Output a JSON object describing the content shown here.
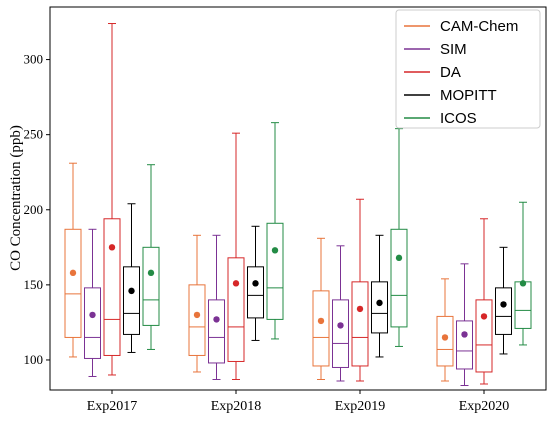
{
  "chart_data": {
    "type": "box",
    "ylabel": "CO Concentration (ppb)",
    "xlabel": "",
    "ylim": [
      80,
      335
    ],
    "yticks": [
      100,
      150,
      200,
      250,
      300
    ],
    "grid": false,
    "legend_placement": "top-right",
    "categories": [
      "Exp2017",
      "Exp2018",
      "Exp2019",
      "Exp2020"
    ],
    "series": [
      {
        "name": "CAM-Chem",
        "color": "#e8743b",
        "boxes": [
          {
            "min": 102,
            "q1": 115,
            "median": 144,
            "q3": 187,
            "max": 231,
            "mean": 158
          },
          {
            "min": 92,
            "q1": 103,
            "median": 122,
            "q3": 150,
            "max": 183,
            "mean": 130
          },
          {
            "min": 87,
            "q1": 96,
            "median": 115,
            "q3": 146,
            "max": 181,
            "mean": 126
          },
          {
            "min": 86,
            "q1": 96,
            "median": 107,
            "q3": 129,
            "max": 154,
            "mean": 115
          }
        ]
      },
      {
        "name": "SIM",
        "color": "#7b3294",
        "boxes": [
          {
            "min": 89,
            "q1": 101,
            "median": 115,
            "q3": 148,
            "max": 187,
            "mean": 130
          },
          {
            "min": 87,
            "q1": 98,
            "median": 115,
            "q3": 140,
            "max": 183,
            "mean": 127
          },
          {
            "min": 86,
            "q1": 95,
            "median": 111,
            "q3": 140,
            "max": 176,
            "mean": 123
          },
          {
            "min": 83,
            "q1": 94,
            "median": 106,
            "q3": 126,
            "max": 164,
            "mean": 117
          }
        ]
      },
      {
        "name": "DA",
        "color": "#d62728",
        "boxes": [
          {
            "min": 90,
            "q1": 103,
            "median": 127,
            "q3": 194,
            "max": 324,
            "mean": 175
          },
          {
            "min": 87,
            "q1": 99,
            "median": 122,
            "q3": 168,
            "max": 251,
            "mean": 151
          },
          {
            "min": 86,
            "q1": 96,
            "median": 115,
            "q3": 152,
            "max": 207,
            "mean": 134
          },
          {
            "min": 84,
            "q1": 92,
            "median": 110,
            "q3": 140,
            "max": 194,
            "mean": 129
          }
        ]
      },
      {
        "name": "MOPITT",
        "color": "#000000",
        "boxes": [
          {
            "min": 105,
            "q1": 117,
            "median": 131,
            "q3": 162,
            "max": 204,
            "mean": 146
          },
          {
            "min": 113,
            "q1": 128,
            "median": 143,
            "q3": 162,
            "max": 189,
            "mean": 151
          },
          {
            "min": 102,
            "q1": 118,
            "median": 131,
            "q3": 152,
            "max": 183,
            "mean": 138
          },
          {
            "min": 104,
            "q1": 117,
            "median": 129,
            "q3": 148,
            "max": 175,
            "mean": 137
          }
        ]
      },
      {
        "name": "ICOS",
        "color": "#238b45",
        "boxes": [
          {
            "min": 107,
            "q1": 123,
            "median": 140,
            "q3": 175,
            "max": 230,
            "mean": 158
          },
          {
            "min": 114,
            "q1": 127,
            "median": 148,
            "q3": 191,
            "max": 258,
            "mean": 173
          },
          {
            "min": 109,
            "q1": 122,
            "median": 143,
            "q3": 187,
            "max": 254,
            "mean": 168
          },
          {
            "min": 110,
            "q1": 121,
            "median": 133,
            "q3": 152,
            "max": 205,
            "mean": 151
          }
        ]
      }
    ]
  }
}
